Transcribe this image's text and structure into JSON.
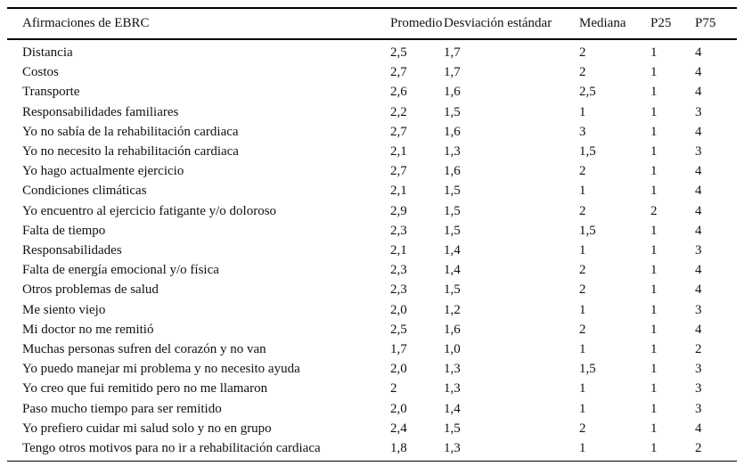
{
  "table": {
    "columns": [
      "Afirmaciones de EBRC",
      "Promedio",
      "Desviación estándar",
      "Mediana",
      "P25",
      "P75"
    ],
    "rows": [
      [
        "Distancia",
        "2,5",
        "1,7",
        "2",
        "1",
        "4"
      ],
      [
        "Costos",
        "2,7",
        "1,7",
        "2",
        "1",
        "4"
      ],
      [
        "Transporte",
        "2,6",
        "1,6",
        "2,5",
        "1",
        "4"
      ],
      [
        "Responsabilidades familiares",
        "2,2",
        "1,5",
        "1",
        "1",
        "3"
      ],
      [
        "Yo no sabía de la rehabilitación cardiaca",
        "2,7",
        "1,6",
        "3",
        "1",
        "4"
      ],
      [
        "Yo no necesito la rehabilitación cardiaca",
        "2,1",
        "1,3",
        "1,5",
        "1",
        "3"
      ],
      [
        "Yo hago actualmente ejercicio",
        "2,7",
        "1,6",
        "2",
        "1",
        "4"
      ],
      [
        "Condiciones climáticas",
        "2,1",
        "1,5",
        "1",
        "1",
        "4"
      ],
      [
        "Yo encuentro al ejercicio fatigante y/o doloroso",
        "2,9",
        "1,5",
        "2",
        "2",
        "4"
      ],
      [
        "Falta de tiempo",
        "2,3",
        "1,5",
        "1,5",
        "1",
        "4"
      ],
      [
        "Responsabilidades",
        "2,1",
        "1,4",
        "1",
        "1",
        "3"
      ],
      [
        "Falta de energía emocional y/o física",
        "2,3",
        "1,4",
        "2",
        "1",
        "4"
      ],
      [
        "Otros problemas de salud",
        "2,3",
        "1,5",
        "2",
        "1",
        "4"
      ],
      [
        "Me siento viejo",
        "2,0",
        "1,2",
        "1",
        "1",
        "3"
      ],
      [
        "Mi doctor no me remitió",
        "2,5",
        "1,6",
        "2",
        "1",
        "4"
      ],
      [
        "Muchas personas sufren del corazón y no van",
        "1,7",
        "1,0",
        "1",
        "1",
        "2"
      ],
      [
        "Yo puedo manejar mi problema y no necesito ayuda",
        "2,0",
        "1,3",
        "1,5",
        "1",
        "3"
      ],
      [
        "Yo creo que fui remitido pero no me llamaron",
        "2",
        "1,3",
        "1",
        "1",
        "3"
      ],
      [
        "Paso mucho tiempo para ser remitido",
        "2,0",
        "1,4",
        "1",
        "1",
        "3"
      ],
      [
        "Yo prefiero cuidar mi salud solo y no en grupo",
        "2,4",
        "1,5",
        "2",
        "1",
        "4"
      ],
      [
        "Tengo otros motivos para no ir a rehabilitación cardiaca",
        "1,8",
        "1,3",
        "1",
        "1",
        "2"
      ]
    ]
  },
  "colors": {
    "background": "#ffffff",
    "text": "#111111",
    "rule": "#000000"
  }
}
